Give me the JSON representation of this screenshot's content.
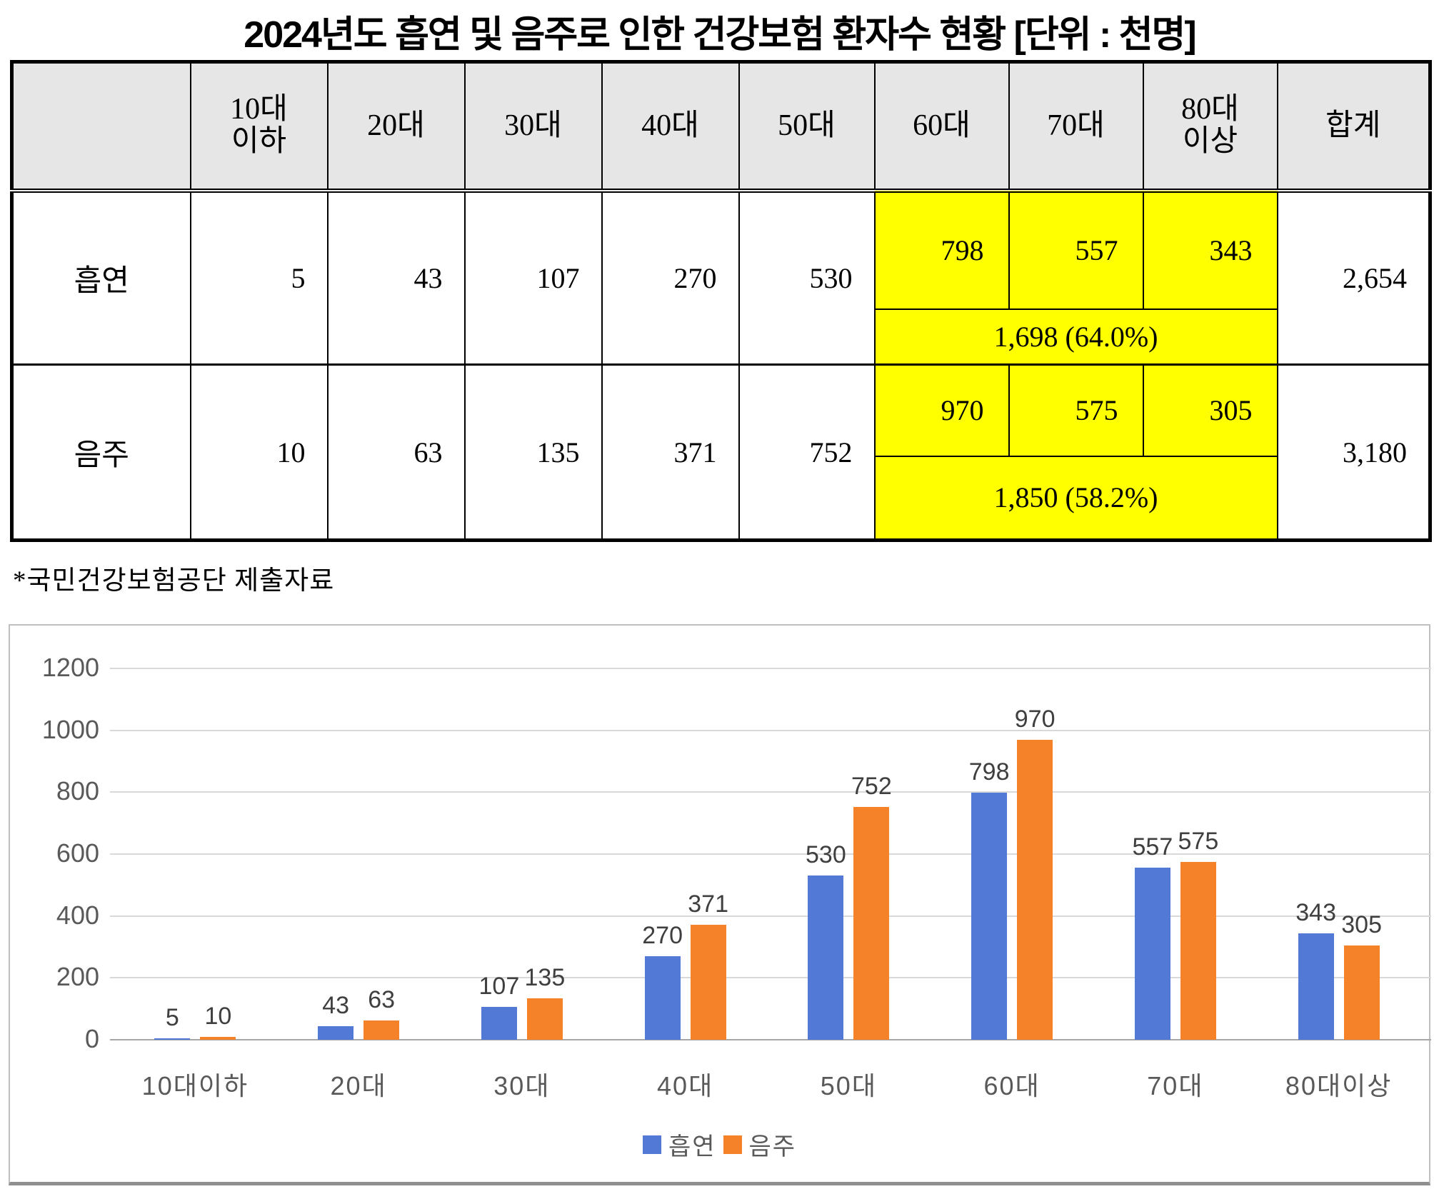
{
  "title": "2024년도 흡연 및 음주로 인한 건강보험 환자수 현황 [단위 : 천명]",
  "footnote": "*국민건강보험공단 제출자료",
  "table": {
    "header_bg": "#e6e6e6",
    "highlight_color": "#ffff00",
    "col_headers": [
      "",
      "10대\n이하",
      "20대",
      "30대",
      "40대",
      "50대",
      "60대",
      "70대",
      "80대\n이상",
      "합계"
    ],
    "rows": [
      {
        "label": "흡연",
        "white_values": [
          "5",
          "43",
          "107",
          "270",
          "530"
        ],
        "yellow_values": [
          "798",
          "557",
          "343"
        ],
        "yellow_subtotal": "1,698 (64.0%)",
        "total": "2,654"
      },
      {
        "label": "음주",
        "white_values": [
          "10",
          "63",
          "135",
          "371",
          "752"
        ],
        "yellow_values": [
          "970",
          "575",
          "305"
        ],
        "yellow_subtotal": "1,850 (58.2%)",
        "total": "3,180"
      }
    ]
  },
  "chart_data": {
    "type": "bar",
    "title": "",
    "xlabel": "",
    "ylabel": "",
    "categories": [
      "10대이하",
      "20대",
      "30대",
      "40대",
      "50대",
      "60대",
      "70대",
      "80대이상"
    ],
    "series": [
      {
        "name": "흡연",
        "color": "#5379d6",
        "values": [
          5,
          43,
          107,
          270,
          530,
          798,
          557,
          343
        ]
      },
      {
        "name": "음주",
        "color": "#f58228",
        "values": [
          10,
          63,
          135,
          371,
          752,
          970,
          575,
          305
        ]
      }
    ],
    "ylim": [
      0,
      1200
    ],
    "ytick_step": 200,
    "grid": true,
    "gridline_color": "#d9d9d9",
    "axis_text_color": "#595959",
    "data_label_color": "#3f3f3f",
    "legend_position": "bottom"
  }
}
